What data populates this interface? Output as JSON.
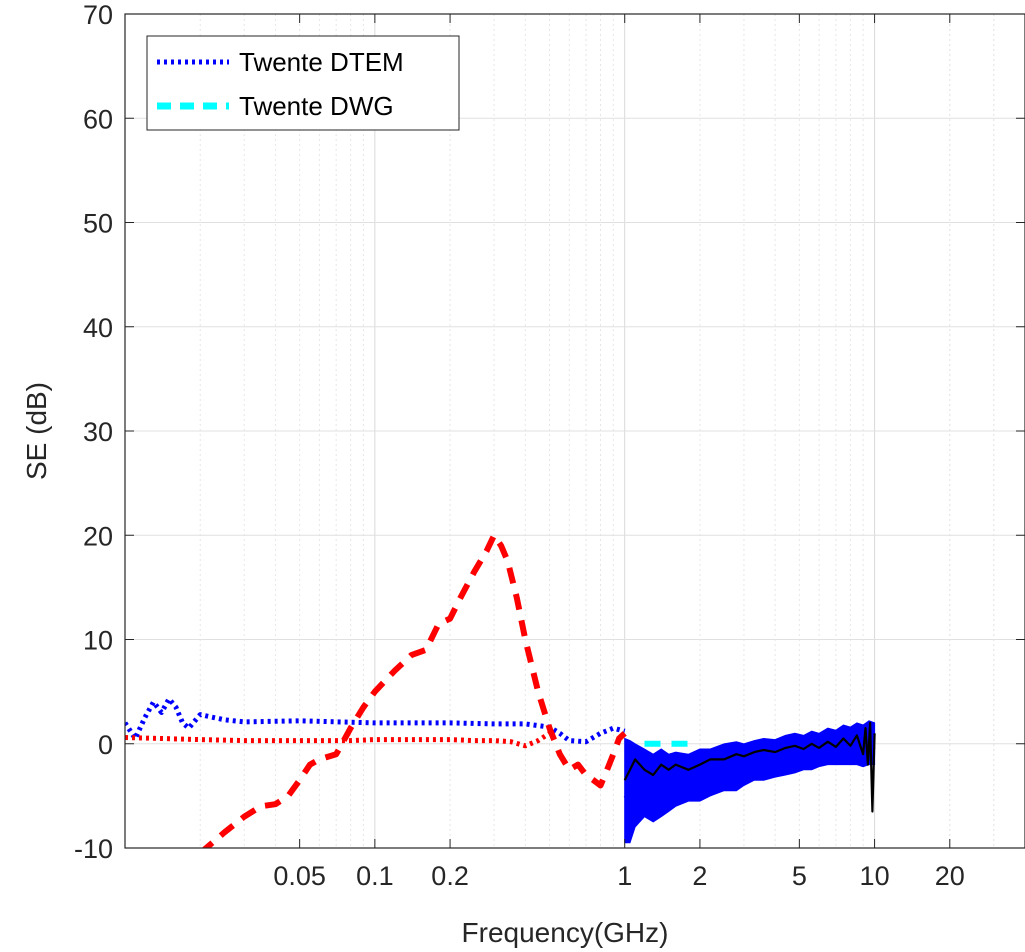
{
  "chart_data": {
    "type": "line",
    "xlabel": "Frequency(GHz)",
    "ylabel": "SE (dB)",
    "x_scale": "log",
    "xlim": [
      0.01,
      40
    ],
    "ylim": [
      -10,
      70
    ],
    "x_ticks": [
      0.05,
      0.1,
      0.2,
      1,
      2,
      5,
      10,
      20
    ],
    "x_tick_labels": [
      "0.05",
      "0.1",
      "0.2",
      "1",
      "2",
      "5",
      "10",
      "20"
    ],
    "y_ticks": [
      -10,
      0,
      10,
      20,
      30,
      40,
      50,
      60,
      70
    ],
    "y_tick_labels": [
      "-10",
      "0",
      "10",
      "20",
      "30",
      "40",
      "50",
      "60",
      "70"
    ],
    "grid": true,
    "legend_position": "top-left",
    "legend": [
      {
        "label": "Twente DTEM",
        "color": "#0000ff",
        "style": "dotted"
      },
      {
        "label": "Twente DWG",
        "color": "#00ffff",
        "style": "dashed"
      }
    ],
    "series": [
      {
        "name": "Twente DTEM",
        "color": "#0000ff",
        "style": "dotted",
        "x": [
          0.01,
          0.011,
          0.012,
          0.013,
          0.014,
          0.015,
          0.016,
          0.017,
          0.018,
          0.02,
          0.025,
          0.03,
          0.05,
          0.1,
          0.2,
          0.3,
          0.4,
          0.5,
          0.55,
          0.6,
          0.7,
          0.8,
          0.9,
          1.0
        ],
        "y": [
          2.0,
          0.5,
          2.5,
          4.0,
          3.0,
          4.3,
          3.5,
          2.0,
          1.5,
          2.8,
          2.3,
          2.1,
          2.2,
          2.0,
          2.0,
          1.9,
          1.9,
          1.6,
          1.0,
          0.3,
          0.2,
          1.0,
          1.5,
          1.2
        ]
      },
      {
        "name": "Twente DWG",
        "color": "#00ffff",
        "style": "dashed",
        "x": [
          1.2,
          1.3,
          1.5,
          1.7,
          1.9
        ],
        "y": [
          0.0,
          0.0,
          0.0,
          0.0,
          0.0
        ]
      },
      {
        "color": "#ff0000",
        "style": "dotted",
        "x": [
          0.01,
          0.02,
          0.03,
          0.05,
          0.08,
          0.1,
          0.15,
          0.2,
          0.25,
          0.3,
          0.35,
          0.4,
          0.45,
          0.5
        ],
        "y": [
          0.6,
          0.4,
          0.3,
          0.3,
          0.3,
          0.4,
          0.4,
          0.4,
          0.3,
          0.3,
          0.2,
          -0.2,
          0.3,
          1.0
        ]
      },
      {
        "color": "#ff0000",
        "style": "dashed",
        "x": [
          0.02,
          0.025,
          0.03,
          0.035,
          0.04,
          0.045,
          0.05,
          0.055,
          0.06,
          0.07,
          0.08,
          0.09,
          0.1,
          0.12,
          0.14,
          0.16,
          0.18,
          0.2,
          0.22,
          0.25,
          0.28,
          0.3,
          0.32,
          0.34,
          0.37,
          0.4,
          0.45,
          0.5,
          0.55,
          0.6,
          0.65,
          0.7,
          0.75,
          0.8,
          0.85,
          0.9,
          0.95,
          1.0
        ],
        "y": [
          -10.5,
          -8.5,
          -7.0,
          -6.0,
          -5.8,
          -5.0,
          -3.5,
          -2.0,
          -1.5,
          -1.0,
          1.5,
          3.5,
          5.0,
          7.0,
          8.5,
          9.0,
          11.5,
          12.0,
          14.0,
          16.5,
          18.5,
          20.0,
          19.0,
          17.5,
          14.0,
          10.0,
          5.0,
          1.5,
          -1.0,
          -2.5,
          -2.0,
          -3.0,
          -3.5,
          -4.0,
          -2.5,
          -1.0,
          0.5,
          1.0
        ]
      },
      {
        "color": "#0000ff",
        "style": "solid",
        "x": [
          1.0,
          1.05,
          1.1,
          1.2,
          1.3,
          1.4,
          1.5,
          1.6,
          1.8,
          2.0,
          2.2,
          2.5,
          2.8,
          3.0,
          3.3,
          3.6,
          4.0,
          4.4,
          4.8,
          5.2,
          5.6,
          6.0,
          6.5,
          7.0,
          7.5,
          8.0,
          8.5,
          9.0,
          9.5,
          10.0
        ],
        "y": [
          -5.0,
          -6.0,
          -4.0,
          -3.5,
          -4.5,
          -3.0,
          -3.5,
          -2.5,
          -3.0,
          -2.5,
          -2.0,
          -2.0,
          -1.5,
          -1.8,
          -1.2,
          -1.0,
          -1.3,
          -0.8,
          -0.5,
          -0.8,
          -0.3,
          -0.6,
          -0.2,
          -0.5,
          0.0,
          -0.3,
          0.3,
          -0.5,
          0.5,
          -0.5
        ],
        "envelope_low": [
          -9.5,
          -9.5,
          -8.0,
          -7.0,
          -7.5,
          -7.0,
          -6.5,
          -6.0,
          -5.5,
          -5.5,
          -5.0,
          -4.5,
          -4.5,
          -4.0,
          -3.5,
          -3.5,
          -3.2,
          -3.0,
          -2.8,
          -2.5,
          -2.5,
          -2.2,
          -2.0,
          -2.0,
          -2.0,
          -2.0,
          -2.0,
          -2.2,
          -2.0,
          -2.0
        ],
        "envelope_high": [
          0.5,
          0.3,
          0.0,
          -0.5,
          -1.0,
          -0.5,
          -1.0,
          -0.8,
          -1.0,
          -0.5,
          -0.5,
          0.0,
          0.2,
          0.0,
          0.3,
          0.5,
          0.4,
          0.8,
          1.0,
          0.8,
          1.2,
          1.0,
          1.5,
          1.3,
          1.8,
          1.6,
          2.0,
          1.8,
          2.2,
          2.0
        ]
      },
      {
        "color": "#000000",
        "style": "solid",
        "x": [
          1.0,
          1.05,
          1.1,
          1.2,
          1.3,
          1.4,
          1.5,
          1.6,
          1.8,
          2.0,
          2.2,
          2.5,
          2.8,
          3.0,
          3.3,
          3.6,
          4.0,
          4.4,
          4.8,
          5.2,
          5.6,
          6.0,
          6.5,
          7.0,
          7.5,
          8.0,
          8.5,
          9.0,
          9.2,
          9.4,
          9.6,
          9.8,
          10.0
        ],
        "y": [
          -3.5,
          -2.5,
          -1.5,
          -2.5,
          -3.0,
          -2.0,
          -2.5,
          -2.0,
          -2.5,
          -2.0,
          -1.5,
          -1.5,
          -1.0,
          -1.2,
          -0.8,
          -0.6,
          -0.8,
          -0.4,
          -0.2,
          -0.5,
          0.0,
          -0.4,
          0.2,
          -0.3,
          0.5,
          -0.2,
          0.8,
          -1.0,
          1.5,
          -2.0,
          2.0,
          -6.5,
          1.0
        ]
      }
    ]
  }
}
